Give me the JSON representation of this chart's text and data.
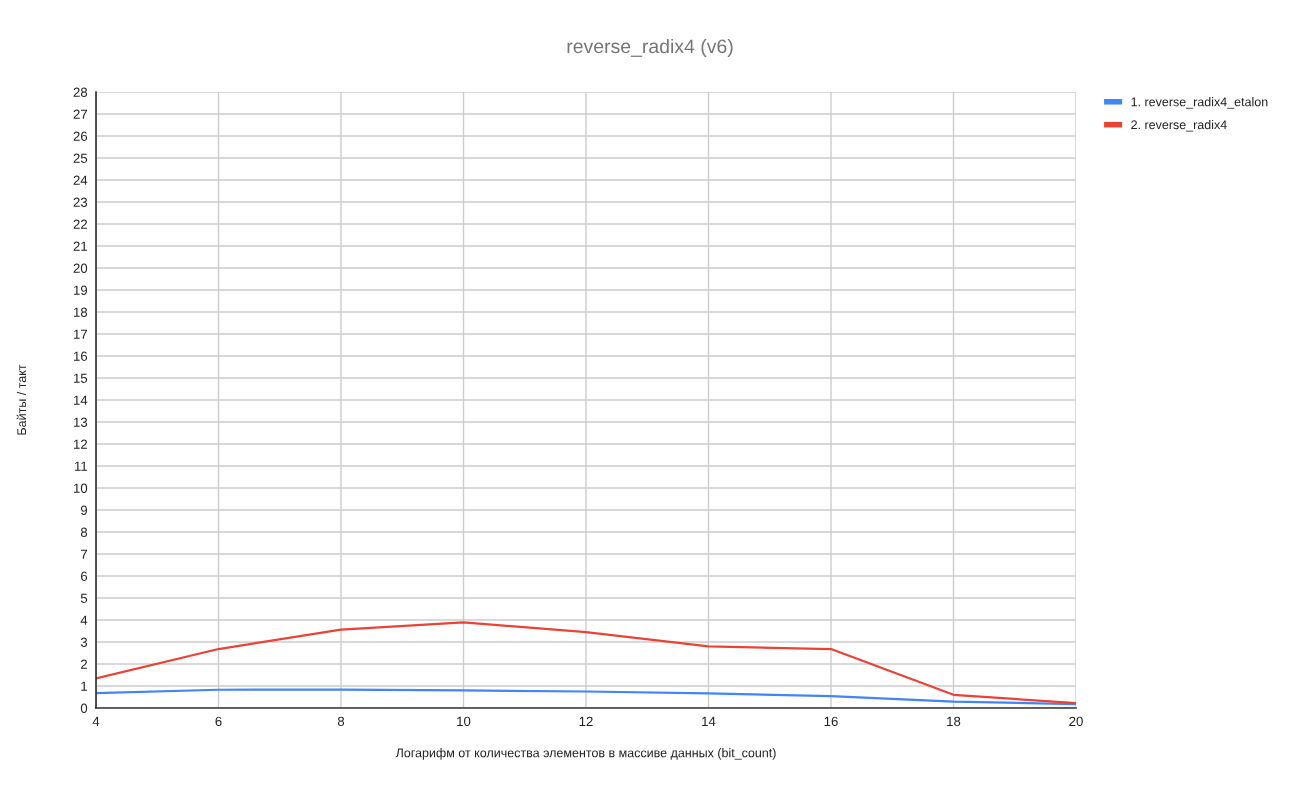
{
  "chart_data": {
    "type": "line",
    "title": "reverse_radix4 (v6)",
    "xlabel": "Логарифм от количества элементов в массиве данных (bit_count)",
    "ylabel": "Байты / такт",
    "x": [
      4,
      6,
      8,
      10,
      12,
      14,
      16,
      18,
      20
    ],
    "series": [
      {
        "name": "1. reverse_radix4_etalon",
        "color": "#4285f4",
        "values": [
          0.68,
          0.83,
          0.84,
          0.8,
          0.75,
          0.66,
          0.54,
          0.29,
          0.18
        ]
      },
      {
        "name": "2. reverse_radix4",
        "color": "#ea4335",
        "values": [
          1.35,
          2.68,
          3.56,
          3.89,
          3.45,
          2.8,
          2.68,
          0.6,
          0.22
        ]
      }
    ],
    "xlim": [
      4,
      20
    ],
    "xticks": [
      4,
      6,
      8,
      10,
      12,
      14,
      16,
      18,
      20
    ],
    "ylim": [
      0,
      28
    ],
    "yticks": [
      0,
      1,
      2,
      3,
      4,
      5,
      6,
      7,
      8,
      9,
      10,
      11,
      12,
      13,
      14,
      15,
      16,
      17,
      18,
      19,
      20,
      21,
      22,
      23,
      24,
      25,
      26,
      27,
      28
    ],
    "grid": true,
    "legend": "top right",
    "marker": "none",
    "line_style": "solid"
  }
}
